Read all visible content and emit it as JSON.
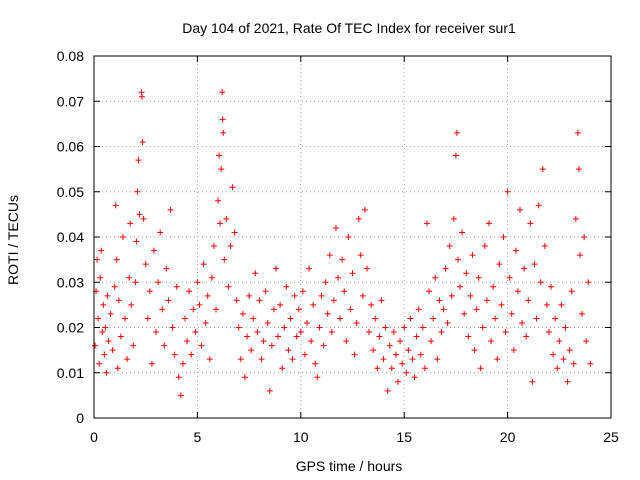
{
  "chart_data": {
    "type": "scatter",
    "title": "Day 104 of 2021, Rate Of TEC Index for receiver sur1",
    "xlabel": "GPS time / hours",
    "ylabel": "ROTI / TECUs",
    "xlim": [
      0,
      25
    ],
    "ylim": [
      0,
      0.08
    ],
    "x_ticks": [
      "0",
      "5",
      "10",
      "15",
      "20",
      "25"
    ],
    "y_ticks": [
      "0",
      "0.01",
      "0.02",
      "0.03",
      "0.04",
      "0.05",
      "0.06",
      "0.07",
      "0.08"
    ],
    "grid": true,
    "marker": "+",
    "color": "#ff0000",
    "series": [
      {
        "points": [
          [
            0.05,
            0.016
          ],
          [
            0.1,
            0.028
          ],
          [
            0.15,
            0.035
          ],
          [
            0.2,
            0.022
          ],
          [
            0.25,
            0.012
          ],
          [
            0.3,
            0.031
          ],
          [
            0.35,
            0.037
          ],
          [
            0.4,
            0.019
          ],
          [
            0.45,
            0.025
          ],
          [
            0.5,
            0.014
          ],
          [
            0.55,
            0.02
          ],
          [
            0.6,
            0.01
          ],
          [
            0.65,
            0.027
          ],
          [
            0.7,
            0.017
          ],
          [
            0.8,
            0.023
          ],
          [
            0.9,
            0.015
          ],
          [
            1.0,
            0.029
          ],
          [
            1.05,
            0.047
          ],
          [
            1.1,
            0.035
          ],
          [
            1.15,
            0.011
          ],
          [
            1.2,
            0.026
          ],
          [
            1.3,
            0.018
          ],
          [
            1.4,
            0.04
          ],
          [
            1.5,
            0.022
          ],
          [
            1.6,
            0.013
          ],
          [
            1.7,
            0.031
          ],
          [
            1.75,
            0.043
          ],
          [
            1.8,
            0.025
          ],
          [
            1.9,
            0.016
          ],
          [
            2.0,
            0.03
          ],
          [
            2.05,
            0.039
          ],
          [
            2.1,
            0.05
          ],
          [
            2.15,
            0.057
          ],
          [
            2.2,
            0.045
          ],
          [
            2.3,
            0.072
          ],
          [
            2.32,
            0.071
          ],
          [
            2.35,
            0.061
          ],
          [
            2.4,
            0.044
          ],
          [
            2.5,
            0.034
          ],
          [
            2.6,
            0.022
          ],
          [
            2.7,
            0.028
          ],
          [
            2.8,
            0.012
          ],
          [
            2.9,
            0.037
          ],
          [
            3.0,
            0.019
          ],
          [
            3.1,
            0.03
          ],
          [
            3.2,
            0.041
          ],
          [
            3.3,
            0.024
          ],
          [
            3.4,
            0.016
          ],
          [
            3.5,
            0.033
          ],
          [
            3.6,
            0.026
          ],
          [
            3.7,
            0.046
          ],
          [
            3.8,
            0.02
          ],
          [
            3.9,
            0.014
          ],
          [
            4.0,
            0.029
          ],
          [
            4.1,
            0.009
          ],
          [
            4.2,
            0.005
          ],
          [
            4.3,
            0.012
          ],
          [
            4.4,
            0.022
          ],
          [
            4.5,
            0.017
          ],
          [
            4.6,
            0.028
          ],
          [
            4.7,
            0.014
          ],
          [
            4.8,
            0.024
          ],
          [
            4.9,
            0.019
          ],
          [
            5.0,
            0.03
          ],
          [
            5.1,
            0.025
          ],
          [
            5.2,
            0.016
          ],
          [
            5.3,
            0.034
          ],
          [
            5.4,
            0.021
          ],
          [
            5.5,
            0.027
          ],
          [
            5.6,
            0.013
          ],
          [
            5.7,
            0.031
          ],
          [
            5.8,
            0.038
          ],
          [
            5.9,
            0.024
          ],
          [
            6.0,
            0.048
          ],
          [
            6.05,
            0.058
          ],
          [
            6.1,
            0.043
          ],
          [
            6.15,
            0.055
          ],
          [
            6.2,
            0.072
          ],
          [
            6.22,
            0.066
          ],
          [
            6.25,
            0.063
          ],
          [
            6.3,
            0.035
          ],
          [
            6.4,
            0.044
          ],
          [
            6.5,
            0.029
          ],
          [
            6.6,
            0.038
          ],
          [
            6.7,
            0.051
          ],
          [
            6.8,
            0.041
          ],
          [
            6.9,
            0.026
          ],
          [
            7.0,
            0.02
          ],
          [
            7.1,
            0.013
          ],
          [
            7.2,
            0.023
          ],
          [
            7.3,
            0.009
          ],
          [
            7.4,
            0.018
          ],
          [
            7.5,
            0.027
          ],
          [
            7.6,
            0.015
          ],
          [
            7.7,
            0.022
          ],
          [
            7.8,
            0.032
          ],
          [
            7.9,
            0.019
          ],
          [
            8.0,
            0.026
          ],
          [
            8.1,
            0.013
          ],
          [
            8.2,
            0.017
          ],
          [
            8.3,
            0.028
          ],
          [
            8.4,
            0.021
          ],
          [
            8.5,
            0.006
          ],
          [
            8.6,
            0.016
          ],
          [
            8.7,
            0.024
          ],
          [
            8.8,
            0.033
          ],
          [
            8.9,
            0.018
          ],
          [
            9.0,
            0.025
          ],
          [
            9.1,
            0.011
          ],
          [
            9.2,
            0.02
          ],
          [
            9.3,
            0.029
          ],
          [
            9.4,
            0.015
          ],
          [
            9.5,
            0.022
          ],
          [
            9.6,
            0.013
          ],
          [
            9.7,
            0.027
          ],
          [
            9.8,
            0.018
          ],
          [
            9.9,
            0.024
          ],
          [
            10.0,
            0.019
          ],
          [
            10.1,
            0.028
          ],
          [
            10.2,
            0.014
          ],
          [
            10.3,
            0.021
          ],
          [
            10.4,
            0.033
          ],
          [
            10.5,
            0.017
          ],
          [
            10.6,
            0.025
          ],
          [
            10.7,
            0.012
          ],
          [
            10.8,
            0.009
          ],
          [
            10.9,
            0.02
          ],
          [
            11.0,
            0.027
          ],
          [
            11.1,
            0.016
          ],
          [
            11.2,
            0.03
          ],
          [
            11.3,
            0.023
          ],
          [
            11.4,
            0.036
          ],
          [
            11.5,
            0.019
          ],
          [
            11.6,
            0.026
          ],
          [
            11.7,
            0.042
          ],
          [
            11.8,
            0.031
          ],
          [
            11.9,
            0.022
          ],
          [
            12.0,
            0.035
          ],
          [
            12.1,
            0.028
          ],
          [
            12.2,
            0.017
          ],
          [
            12.3,
            0.04
          ],
          [
            12.4,
            0.024
          ],
          [
            12.5,
            0.032
          ],
          [
            12.6,
            0.014
          ],
          [
            12.7,
            0.021
          ],
          [
            12.8,
            0.044
          ],
          [
            12.9,
            0.036
          ],
          [
            13.0,
            0.027
          ],
          [
            13.1,
            0.046
          ],
          [
            13.2,
            0.033
          ],
          [
            13.3,
            0.019
          ],
          [
            13.4,
            0.025
          ],
          [
            13.5,
            0.015
          ],
          [
            13.6,
            0.022
          ],
          [
            13.7,
            0.011
          ],
          [
            13.8,
            0.018
          ],
          [
            13.9,
            0.026
          ],
          [
            14.0,
            0.013
          ],
          [
            14.1,
            0.02
          ],
          [
            14.2,
            0.006
          ],
          [
            14.3,
            0.016
          ],
          [
            14.4,
            0.011
          ],
          [
            14.5,
            0.019
          ],
          [
            14.6,
            0.014
          ],
          [
            14.7,
            0.008
          ],
          [
            14.8,
            0.017
          ],
          [
            14.9,
            0.012
          ],
          [
            15.0,
            0.02
          ],
          [
            15.1,
            0.01
          ],
          [
            15.2,
            0.015
          ],
          [
            15.3,
            0.022
          ],
          [
            15.4,
            0.013
          ],
          [
            15.5,
            0.009
          ],
          [
            15.6,
            0.018
          ],
          [
            15.7,
            0.024
          ],
          [
            15.8,
            0.014
          ],
          [
            15.9,
            0.02
          ],
          [
            16.0,
            0.011
          ],
          [
            16.1,
            0.043
          ],
          [
            16.2,
            0.028
          ],
          [
            16.3,
            0.017
          ],
          [
            16.4,
            0.022
          ],
          [
            16.5,
            0.031
          ],
          [
            16.6,
            0.013
          ],
          [
            16.7,
            0.026
          ],
          [
            16.8,
            0.019
          ],
          [
            16.9,
            0.024
          ],
          [
            17.0,
            0.033
          ],
          [
            17.1,
            0.021
          ],
          [
            17.2,
            0.038
          ],
          [
            17.3,
            0.027
          ],
          [
            17.4,
            0.044
          ],
          [
            17.5,
            0.058
          ],
          [
            17.55,
            0.063
          ],
          [
            17.6,
            0.035
          ],
          [
            17.7,
            0.029
          ],
          [
            17.8,
            0.041
          ],
          [
            17.9,
            0.023
          ],
          [
            18.0,
            0.032
          ],
          [
            18.1,
            0.018
          ],
          [
            18.2,
            0.027
          ],
          [
            18.3,
            0.036
          ],
          [
            18.4,
            0.015
          ],
          [
            18.5,
            0.024
          ],
          [
            18.6,
            0.031
          ],
          [
            18.7,
            0.011
          ],
          [
            18.8,
            0.02
          ],
          [
            18.9,
            0.038
          ],
          [
            19.0,
            0.026
          ],
          [
            19.1,
            0.043
          ],
          [
            19.2,
            0.017
          ],
          [
            19.3,
            0.029
          ],
          [
            19.4,
            0.022
          ],
          [
            19.5,
            0.013
          ],
          [
            19.6,
            0.034
          ],
          [
            19.7,
            0.025
          ],
          [
            19.8,
            0.04
          ],
          [
            19.9,
            0.019
          ],
          [
            20.0,
            0.05
          ],
          [
            20.1,
            0.031
          ],
          [
            20.2,
            0.023
          ],
          [
            20.3,
            0.015
          ],
          [
            20.4,
            0.037
          ],
          [
            20.5,
            0.028
          ],
          [
            20.6,
            0.046
          ],
          [
            20.7,
            0.021
          ],
          [
            20.8,
            0.033
          ],
          [
            20.9,
            0.018
          ],
          [
            21.0,
            0.026
          ],
          [
            21.1,
            0.043
          ],
          [
            21.2,
            0.008
          ],
          [
            21.3,
            0.034
          ],
          [
            21.4,
            0.022
          ],
          [
            21.5,
            0.047
          ],
          [
            21.6,
            0.03
          ],
          [
            21.7,
            0.055
          ],
          [
            21.8,
            0.038
          ],
          [
            21.9,
            0.025
          ],
          [
            22.0,
            0.019
          ],
          [
            22.1,
            0.029
          ],
          [
            22.2,
            0.014
          ],
          [
            22.3,
            0.022
          ],
          [
            22.4,
            0.011
          ],
          [
            22.5,
            0.017
          ],
          [
            22.6,
            0.025
          ],
          [
            22.7,
            0.013
          ],
          [
            22.8,
            0.02
          ],
          [
            22.9,
            0.008
          ],
          [
            23.0,
            0.015
          ],
          [
            23.1,
            0.028
          ],
          [
            23.2,
            0.012
          ],
          [
            23.3,
            0.044
          ],
          [
            23.4,
            0.063
          ],
          [
            23.45,
            0.055
          ],
          [
            23.5,
            0.036
          ],
          [
            23.6,
            0.023
          ],
          [
            23.7,
            0.04
          ],
          [
            23.8,
            0.017
          ],
          [
            23.9,
            0.03
          ],
          [
            24.0,
            0.012
          ]
        ]
      }
    ]
  }
}
